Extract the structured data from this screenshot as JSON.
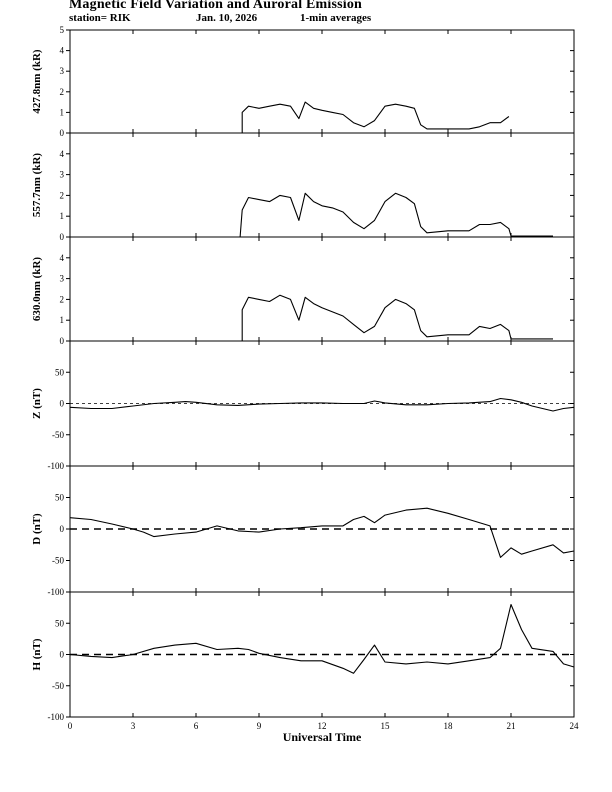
{
  "header": {
    "title": "Magnetic Field Variation and Auroral Emission",
    "station": "station= RIK",
    "date": "Jan. 10, 2026",
    "averaging": "1-min averages"
  },
  "colors": {
    "line": "#000000",
    "background": "#ffffff"
  },
  "chart_data": [
    {
      "type": "line",
      "ylabel": "427.8nm (kR)",
      "ylim": [
        0,
        5
      ],
      "yticks": [
        0,
        1,
        2,
        3,
        4,
        5
      ],
      "xlim": [
        0,
        24
      ],
      "zero_line": false,
      "x": [
        8.2,
        8.2,
        8.5,
        9.0,
        9.5,
        10.0,
        10.5,
        10.9,
        11.2,
        11.6,
        12.0,
        12.5,
        13.0,
        13.5,
        14.0,
        14.5,
        15.0,
        15.5,
        16.0,
        16.4,
        16.7,
        17.0,
        18.0,
        19.0,
        19.5,
        20.0,
        20.5,
        20.9
      ],
      "y": [
        0,
        1.0,
        1.3,
        1.2,
        1.3,
        1.4,
        1.3,
        0.7,
        1.5,
        1.2,
        1.1,
        1.0,
        0.9,
        0.5,
        0.3,
        0.6,
        1.3,
        1.4,
        1.3,
        1.2,
        0.4,
        0.2,
        0.2,
        0.2,
        0.3,
        0.5,
        0.5,
        0.8
      ]
    },
    {
      "type": "line",
      "ylabel": "557.7nm (kR)",
      "ylim": [
        0,
        5
      ],
      "yticks": [
        0,
        1,
        2,
        3,
        4
      ],
      "xlim": [
        0,
        24
      ],
      "zero_line": false,
      "x": [
        8.1,
        8.2,
        8.5,
        9.0,
        9.5,
        10.0,
        10.5,
        10.9,
        11.2,
        11.6,
        12.0,
        12.5,
        13.0,
        13.5,
        14.0,
        14.5,
        15.0,
        15.5,
        16.0,
        16.4,
        16.7,
        17.0,
        18.0,
        19.0,
        19.5,
        20.0,
        20.5,
        20.9,
        21.0,
        23.0
      ],
      "y": [
        0,
        1.3,
        1.9,
        1.8,
        1.7,
        2.0,
        1.9,
        0.8,
        2.1,
        1.7,
        1.5,
        1.4,
        1.2,
        0.7,
        0.4,
        0.8,
        1.7,
        2.1,
        1.9,
        1.6,
        0.5,
        0.2,
        0.3,
        0.3,
        0.6,
        0.6,
        0.7,
        0.4,
        0.05,
        0.05
      ]
    },
    {
      "type": "line",
      "ylabel": "630.0nm (kR)",
      "ylim": [
        0,
        5
      ],
      "yticks": [
        0,
        1,
        2,
        3,
        4
      ],
      "xlim": [
        0,
        24
      ],
      "zero_line": false,
      "x": [
        8.2,
        8.2,
        8.5,
        9.0,
        9.5,
        10.0,
        10.5,
        10.9,
        11.2,
        11.6,
        12.0,
        12.5,
        13.0,
        13.5,
        14.0,
        14.5,
        15.0,
        15.5,
        16.0,
        16.4,
        16.7,
        17.0,
        18.0,
        19.0,
        19.5,
        20.0,
        20.5,
        20.9,
        21.0,
        23.0
      ],
      "y": [
        0,
        1.5,
        2.1,
        2.0,
        1.9,
        2.2,
        2.0,
        1.0,
        2.1,
        1.8,
        1.6,
        1.4,
        1.2,
        0.8,
        0.4,
        0.7,
        1.6,
        2.0,
        1.8,
        1.5,
        0.5,
        0.2,
        0.3,
        0.3,
        0.7,
        0.6,
        0.8,
        0.5,
        0.1,
        0.1
      ]
    },
    {
      "type": "line",
      "ylabel": "Z (nT)",
      "ylim": [
        -100,
        100
      ],
      "yticks": [
        -100,
        -50,
        0,
        50
      ],
      "xlim": [
        0,
        24
      ],
      "zero_line": true,
      "zero_style": "thin-dashed",
      "x": [
        0,
        1,
        2,
        3,
        4,
        5,
        5.5,
        6,
        7,
        8,
        9,
        10,
        11,
        12,
        13,
        14,
        14.5,
        15,
        16,
        17,
        18,
        19,
        20,
        20.5,
        21,
        21.5,
        22,
        23,
        23.5,
        24
      ],
      "y": [
        -6,
        -8,
        -8,
        -4,
        0,
        2,
        3,
        2,
        -2,
        -3,
        -1,
        0,
        1,
        1,
        0,
        0,
        4,
        1,
        -2,
        -2,
        0,
        1,
        3,
        8,
        6,
        2,
        -4,
        -12,
        -8,
        -6
      ]
    },
    {
      "type": "line",
      "ylabel": "D (nT)",
      "ylim": [
        -100,
        100
      ],
      "yticks": [
        -100,
        -50,
        0,
        50
      ],
      "xlim": [
        0,
        24
      ],
      "zero_line": true,
      "zero_style": "thick-dashed",
      "x": [
        0,
        1,
        2,
        3,
        3.5,
        4,
        5,
        6,
        7,
        8,
        9,
        10,
        11,
        12,
        13,
        13.5,
        14,
        14.5,
        15,
        16,
        17,
        18,
        19,
        20,
        20.5,
        21,
        21.5,
        22,
        23,
        23.5,
        24
      ],
      "y": [
        18,
        15,
        8,
        0,
        -5,
        -12,
        -8,
        -5,
        5,
        -3,
        -5,
        0,
        2,
        5,
        5,
        15,
        20,
        10,
        22,
        30,
        33,
        25,
        15,
        5,
        -45,
        -30,
        -40,
        -35,
        -25,
        -38,
        -35
      ]
    },
    {
      "type": "line",
      "ylabel": "H (nT)",
      "ylim": [
        -100,
        100
      ],
      "yticks": [
        -100,
        -50,
        0,
        50
      ],
      "xlim": [
        0,
        24
      ],
      "zero_line": true,
      "zero_style": "thick-dashed",
      "x": [
        0,
        1,
        2,
        3,
        4,
        5,
        6,
        7,
        8,
        8.5,
        9,
        10,
        11,
        12,
        13,
        13.5,
        14,
        14.5,
        15,
        16,
        17,
        18,
        19,
        20,
        20.5,
        21,
        21.5,
        22,
        23,
        23.5,
        24
      ],
      "y": [
        0,
        -3,
        -5,
        0,
        10,
        15,
        18,
        8,
        10,
        8,
        2,
        -5,
        -10,
        -10,
        -22,
        -30,
        -8,
        15,
        -12,
        -15,
        -12,
        -15,
        -10,
        -5,
        10,
        80,
        40,
        10,
        5,
        -15,
        -20
      ]
    }
  ],
  "x_axis": {
    "label": "Universal Time",
    "ticks": [
      0,
      3,
      6,
      9,
      12,
      15,
      18,
      21,
      24
    ]
  }
}
